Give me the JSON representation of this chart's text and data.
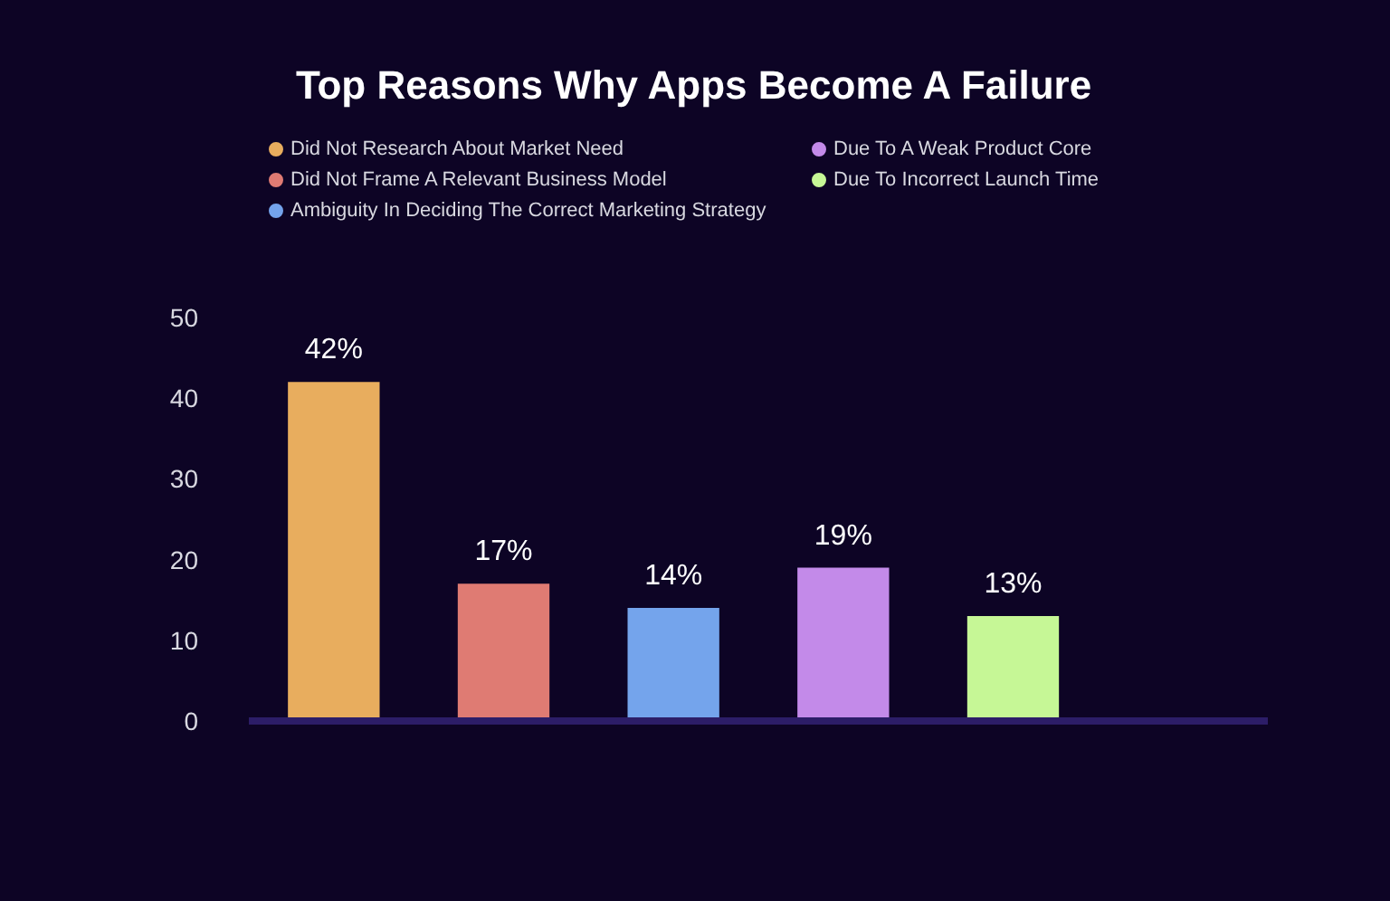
{
  "chart_data": {
    "type": "bar",
    "title": "Top Reasons Why Apps Become A Failure",
    "categories": [
      null,
      null,
      null,
      null,
      null,
      null
    ],
    "series": [
      {
        "name": "Did Not Research About Market Need",
        "color": "#e8ad5e",
        "values": [
          42,
          null,
          null,
          null,
          null,
          null
        ],
        "value_labels": [
          "42%",
          null,
          null,
          null,
          null,
          null
        ]
      },
      {
        "name": "Did Not Frame A Relevant Business Model",
        "color": "#df7b73",
        "values": [
          null,
          17,
          null,
          null,
          null,
          null
        ],
        "value_labels": [
          null,
          "17%",
          null,
          null,
          null,
          null
        ]
      },
      {
        "name": "Ambiguity In Deciding The Correct Marketing Strategy",
        "color": "#74a4ec",
        "values": [
          null,
          null,
          14,
          null,
          null,
          null
        ],
        "value_labels": [
          null,
          null,
          "14%",
          null,
          null,
          null
        ]
      },
      {
        "name": "Due To A Weak Product Core",
        "color": "#c38ae9",
        "values": [
          null,
          null,
          null,
          19,
          null,
          null
        ],
        "value_labels": [
          null,
          null,
          null,
          "19%",
          null,
          null
        ]
      },
      {
        "name": "Due To Incorrect Launch Time",
        "color": "#c6f796",
        "values": [
          null,
          null,
          null,
          null,
          13,
          null
        ],
        "value_labels": [
          null,
          null,
          null,
          null,
          "13%",
          null
        ]
      }
    ],
    "ylim": [
      0,
      50
    ],
    "yticks": [
      0,
      10,
      20,
      30,
      40,
      50
    ],
    "grid": false,
    "legend": "top"
  }
}
